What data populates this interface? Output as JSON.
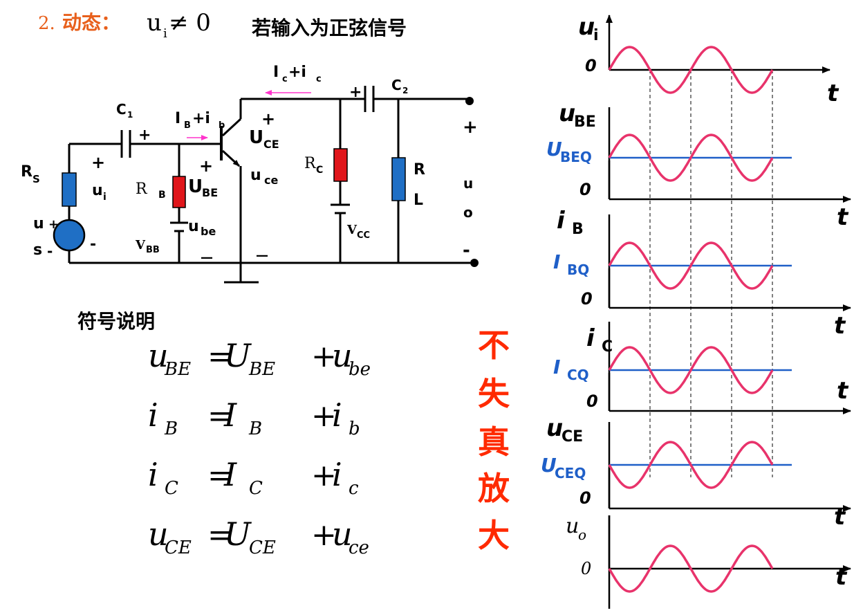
{
  "title": {
    "number": "2.",
    "label": "动态：",
    "condition": "ui ≠ 0",
    "condition_main": "u",
    "condition_sub": "i",
    "condition_rest": " ≠ 0",
    "description": "若输入为正弦信号"
  },
  "circuit": {
    "labels": {
      "ic_total_main": "I",
      "ic_total_sub1": "c",
      "ic_total_mid": "+i",
      "ic_total_sub2": "c",
      "ib_total_main": "I",
      "ib_total_sub1": "B",
      "ib_total_mid": "+i",
      "ib_total_sub2": "b",
      "c1_main": "C",
      "c1_sub": "1",
      "c2_main": "C",
      "c2_sub": "2",
      "rs_main": "R",
      "rs_sub": "S",
      "rb_main": "R",
      "rb_sub": "B",
      "rc_main": "R",
      "rc_sub": "C",
      "rl_r": "R",
      "rl_l": "L",
      "vbb_main": "V",
      "vbb_sub": "BB",
      "vcc_main": "V",
      "vcc_sub": "CC",
      "ui_main": "u",
      "ui_sub": "i",
      "us_u": "u",
      "us_s": "s",
      "ube_cap_main": "U",
      "ube_cap_sub": "BE",
      "ube_small_main": "u",
      "ube_small_sub": "be",
      "uce_cap_main": "U",
      "uce_cap_sub": "CE",
      "uce_small_main": "u",
      "uce_small_sub": "ce",
      "uo_u": "u",
      "uo_o": "o",
      "plus": "+",
      "minus": "-",
      "dash": "—"
    },
    "colors": {
      "blue_component": "#1f6fc5",
      "red_component": "#e0161b",
      "arrow": "#ff33cc",
      "source": "#1f6fc5",
      "wire": "#000000"
    }
  },
  "legend": {
    "title": "符号说明",
    "equations": [
      {
        "lhs_main": "u",
        "lhs_sub": "BE",
        "dc_main": "U",
        "dc_sub": "BE",
        "ac_main": "u",
        "ac_sub": "be"
      },
      {
        "lhs_main": "i",
        "lhs_sub": "B",
        "dc_main": "I",
        "dc_sub": "B",
        "ac_main": "i",
        "ac_sub": "b"
      },
      {
        "lhs_main": "i",
        "lhs_sub": "C",
        "dc_main": "I",
        "dc_sub": "C",
        "ac_main": "i",
        "ac_sub": "c"
      },
      {
        "lhs_main": "u",
        "lhs_sub": "CE",
        "dc_main": "U",
        "dc_sub": "CE",
        "ac_main": "u",
        "ac_sub": "ce"
      }
    ],
    "equals": "=",
    "plus": "+"
  },
  "note": {
    "chars": [
      "不",
      "失",
      "真",
      "放",
      "大"
    ],
    "color": "#ff2a00"
  },
  "chart_data": {
    "type": "line",
    "x_axis_label": "t",
    "zero_label": "0",
    "periods_shown": 2,
    "signal_color": "#e8336b",
    "dc_color": "#1f5fc8",
    "series": [
      {
        "name": "ui",
        "ylabel_main": "u",
        "ylabel_sub": "i",
        "dc_label_main": "",
        "dc_label_sub": "",
        "dc_level": 0,
        "amplitude": 1,
        "phase": "in-phase",
        "italic": false
      },
      {
        "name": "uBE",
        "ylabel_main": "u",
        "ylabel_sub": "BE",
        "dc_label_main": "U",
        "dc_label_sub": "BEQ",
        "dc_level": 1,
        "amplitude": 1,
        "phase": "in-phase",
        "italic": false
      },
      {
        "name": "iB",
        "ylabel_main": "i",
        "ylabel_sub": "B",
        "dc_label_main": "I",
        "dc_label_sub": "BQ",
        "dc_level": 1,
        "amplitude": 1,
        "phase": "in-phase",
        "italic": false
      },
      {
        "name": "iC",
        "ylabel_main": "i",
        "ylabel_sub": "C",
        "dc_label_main": "I",
        "dc_label_sub": "CQ",
        "dc_level": 1,
        "amplitude": 1,
        "phase": "in-phase",
        "italic": false
      },
      {
        "name": "uCE",
        "ylabel_main": "u",
        "ylabel_sub": "CE",
        "dc_label_main": "U",
        "dc_label_sub": "CEQ",
        "dc_level": 1,
        "amplitude": 1,
        "phase": "inverted",
        "italic": false
      },
      {
        "name": "uo",
        "ylabel_main": "u",
        "ylabel_sub": "o",
        "dc_label_main": "",
        "dc_label_sub": "",
        "dc_level": 0,
        "amplitude": 1,
        "phase": "inverted",
        "italic": true
      }
    ]
  }
}
